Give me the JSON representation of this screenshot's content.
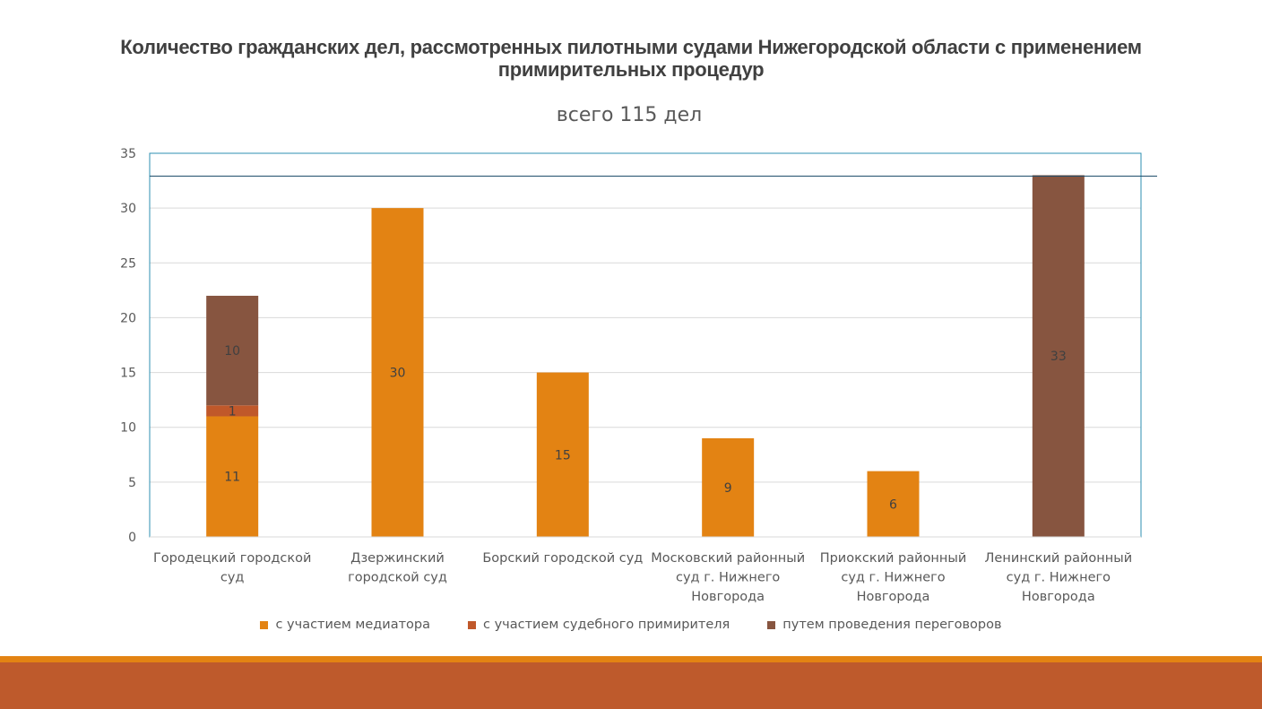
{
  "slide": {
    "title": "Количество гражданских дел, рассмотренных  пилотными судами Нижегородской области с применением примирительных процедур"
  },
  "colors": {
    "mediator": "#E38313",
    "judicial": "#C0582A",
    "negotiation": "#875540",
    "plot_border": "#2E8FB0",
    "gridline": "#D9D9D9",
    "footer_stripe": "#E38313",
    "footer_bar": "#BE5A2C"
  },
  "chart_data": {
    "type": "bar",
    "stacked": true,
    "title": "всего 115 дел",
    "xlabel": "",
    "ylabel": "",
    "ylim": [
      0,
      35
    ],
    "yticks": [
      0,
      5,
      10,
      15,
      20,
      25,
      30,
      35
    ],
    "grid": true,
    "legend_position": "bottom",
    "reference_line": 33,
    "categories": [
      [
        "Городецкий городской",
        "суд"
      ],
      [
        "Дзержинский",
        "городской суд"
      ],
      [
        "Борский городской суд"
      ],
      [
        "Московский районный",
        "суд г. Нижнего",
        "Новгорода"
      ],
      [
        "Приокский районный",
        "суд г. Нижнего",
        "Новгорода"
      ],
      [
        "Ленинский районный",
        "суд г. Нижнего",
        "Новгорода"
      ]
    ],
    "series": [
      {
        "name": "с участием медиатора",
        "color_key": "mediator",
        "values": [
          11,
          30,
          15,
          9,
          6,
          0
        ]
      },
      {
        "name": "с участием судебного примирителя",
        "color_key": "judicial",
        "values": [
          1,
          0,
          0,
          0,
          0,
          0
        ]
      },
      {
        "name": "путем проведения переговоров",
        "color_key": "negotiation",
        "values": [
          10,
          0,
          0,
          0,
          0,
          33
        ]
      }
    ]
  }
}
